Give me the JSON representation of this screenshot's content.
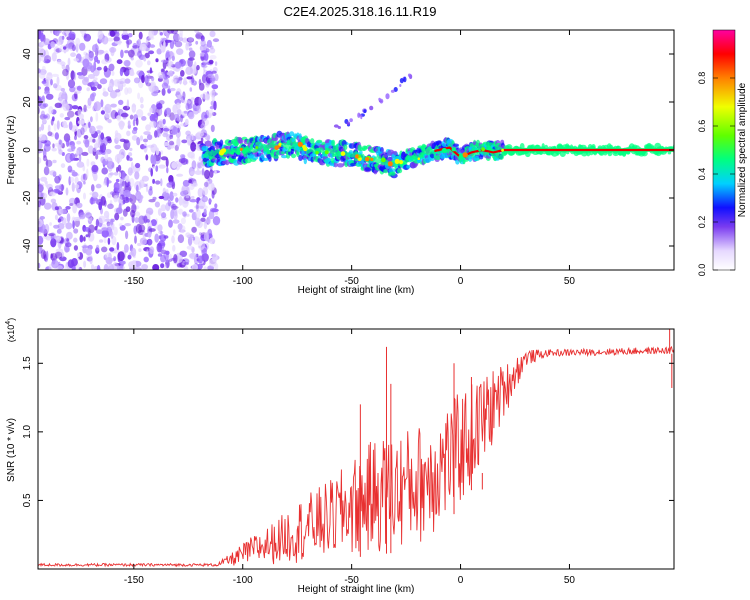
{
  "chart_data": [
    {
      "type": "heatmap",
      "title": "C2E4.2025.318.16.11.R19",
      "xlabel": "Height of straight line (km)",
      "ylabel": "Frequency (Hz)",
      "xlim": [
        -194,
        98
      ],
      "ylim": [
        -50,
        50
      ],
      "x_ticks": [
        -150,
        -100,
        -50,
        0,
        50
      ],
      "y_ticks": [
        -40,
        -20,
        0,
        20,
        40
      ],
      "colorbar": {
        "label": "Normalized spectral amplitude",
        "range": [
          0,
          1
        ],
        "ticks": [
          "0.0",
          "0.2",
          "0.4",
          "0.6",
          "0.8"
        ],
        "tick_values": [
          0.0,
          0.2,
          0.4,
          0.6,
          0.8
        ]
      },
      "features": {
        "noise_region_x": [
          -194,
          -118
        ],
        "signal_track": [
          [
            -118,
            -2
          ],
          [
            -110,
            -1
          ],
          [
            -100,
            0
          ],
          [
            -90,
            1
          ],
          [
            -80,
            2
          ],
          [
            -75,
            2
          ],
          [
            -70,
            0
          ],
          [
            -60,
            -1
          ],
          [
            -50,
            -2
          ],
          [
            -45,
            -3
          ],
          [
            -40,
            -4
          ],
          [
            -35,
            -5
          ],
          [
            -30,
            -6
          ],
          [
            -25,
            -4
          ],
          [
            -20,
            -3
          ],
          [
            -15,
            -1
          ],
          [
            -10,
            0
          ],
          [
            -5,
            1
          ],
          [
            0,
            -3
          ],
          [
            5,
            -1
          ],
          [
            10,
            0
          ],
          [
            15,
            -1
          ],
          [
            20,
            0
          ],
          [
            30,
            0
          ],
          [
            60,
            0
          ],
          [
            98,
            0
          ]
        ],
        "harmonic_branch": [
          [
            -60,
            8
          ],
          [
            -50,
            12
          ],
          [
            -40,
            18
          ],
          [
            -30,
            26
          ],
          [
            -22,
            32
          ]
        ]
      }
    },
    {
      "type": "line",
      "xlabel": "Height of straight line (km)",
      "ylabel": "SNR (10 * v/v)",
      "y_multiplier": "(x10",
      "y_multiplier_exp": "4",
      "xlim": [
        -194,
        98
      ],
      "ylim": [
        0,
        1.75
      ],
      "x_ticks": [
        -150,
        -100,
        -50,
        0,
        50
      ],
      "y_ticks": [
        0.5,
        1.0,
        1.5
      ],
      "y_tick_labels": [
        "0.5",
        "1.0",
        "1.5"
      ],
      "series": [
        {
          "name": "SNR",
          "color": "#e83030",
          "envelope_lower": [
            [
              -194,
              0.02
            ],
            [
              -105,
              0.02
            ],
            [
              -90,
              0.03
            ],
            [
              -70,
              0.05
            ],
            [
              -50,
              0.08
            ],
            [
              -30,
              0.12
            ],
            [
              -15,
              0.2
            ],
            [
              0,
              0.45
            ],
            [
              10,
              0.7
            ],
            [
              20,
              1.1
            ],
            [
              30,
              1.48
            ],
            [
              40,
              1.55
            ],
            [
              98,
              1.57
            ]
          ],
          "envelope_upper": [
            [
              -194,
              0.04
            ],
            [
              -112,
              0.04
            ],
            [
              -105,
              0.12
            ],
            [
              -95,
              0.25
            ],
            [
              -85,
              0.35
            ],
            [
              -75,
              0.5
            ],
            [
              -60,
              0.65
            ],
            [
              -50,
              0.8
            ],
            [
              -40,
              0.95
            ],
            [
              -30,
              1.0
            ],
            [
              -20,
              1.05
            ],
            [
              -10,
              1.15
            ],
            [
              0,
              1.3
            ],
            [
              10,
              1.42
            ],
            [
              20,
              1.5
            ],
            [
              30,
              1.6
            ],
            [
              40,
              1.6
            ],
            [
              98,
              1.62
            ]
          ],
          "spikes": [
            [
              -46,
              1.2
            ],
            [
              -34,
              1.62
            ],
            [
              -32,
              1.35
            ],
            [
              -3,
              1.5
            ],
            [
              5,
              1.4
            ],
            [
              10,
              0.58
            ],
            [
              96,
              1.75
            ],
            [
              97,
              1.32
            ]
          ]
        }
      ]
    }
  ]
}
